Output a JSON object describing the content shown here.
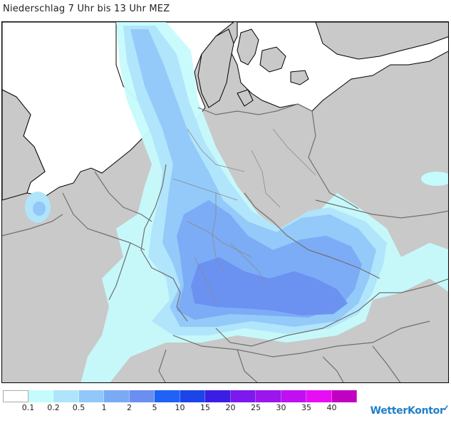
{
  "title": "Niederschlag 7 Uhr bis 13 Uhr MEZ",
  "map": {
    "background_land": "#c9c9c9",
    "sea": "#ffffff",
    "borders": "#707070",
    "coastline": "#000000"
  },
  "legend": {
    "colors": [
      "#ffffff",
      "#c6fbfd",
      "#b0e4fb",
      "#91c8f9",
      "#7aaaf6",
      "#6a8ff0",
      "#1f62f6",
      "#1c44e8",
      "#3b1ee4",
      "#7d18ef",
      "#9a16ec",
      "#c00ff0",
      "#e70ef5",
      "#c100c1"
    ],
    "labels": [
      "0.1",
      "0.2",
      "0.5",
      "1",
      "2",
      "5",
      "10",
      "15",
      "20",
      "25",
      "30",
      "35",
      "40"
    ]
  },
  "brand": {
    "name": "WetterKontor"
  }
}
